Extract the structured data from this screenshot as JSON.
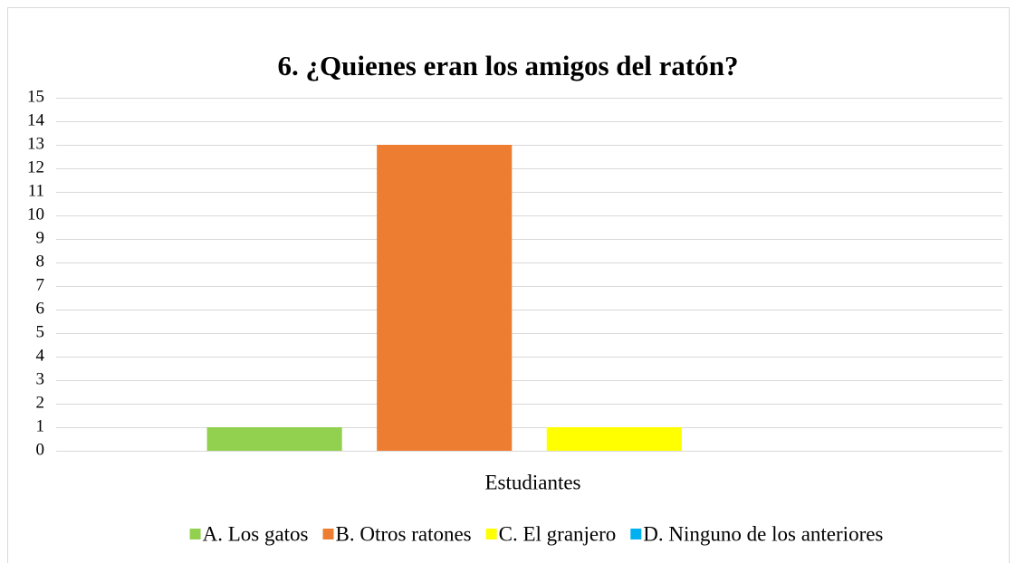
{
  "chart_data": {
    "type": "bar",
    "title": "6. ¿Quienes eran los amigos del ratón?",
    "categories": [
      "Estudiantes"
    ],
    "series": [
      {
        "name": "A. Los gatos",
        "color": "#92d050",
        "values": [
          1
        ]
      },
      {
        "name": "B. Otros ratones",
        "color": "#ed7d31",
        "values": [
          13
        ]
      },
      {
        "name": "C. El granjero",
        "color": "#ffff00",
        "values": [
          1
        ]
      },
      {
        "name": "D. Ninguno de los anteriores",
        "color": "#00b0f0",
        "values": [
          0
        ]
      }
    ],
    "ylim": [
      0,
      15
    ],
    "yticks": [
      0,
      1,
      2,
      3,
      4,
      5,
      6,
      7,
      8,
      9,
      10,
      11,
      12,
      13,
      14,
      15
    ],
    "grid": true,
    "legend": "bottom"
  }
}
